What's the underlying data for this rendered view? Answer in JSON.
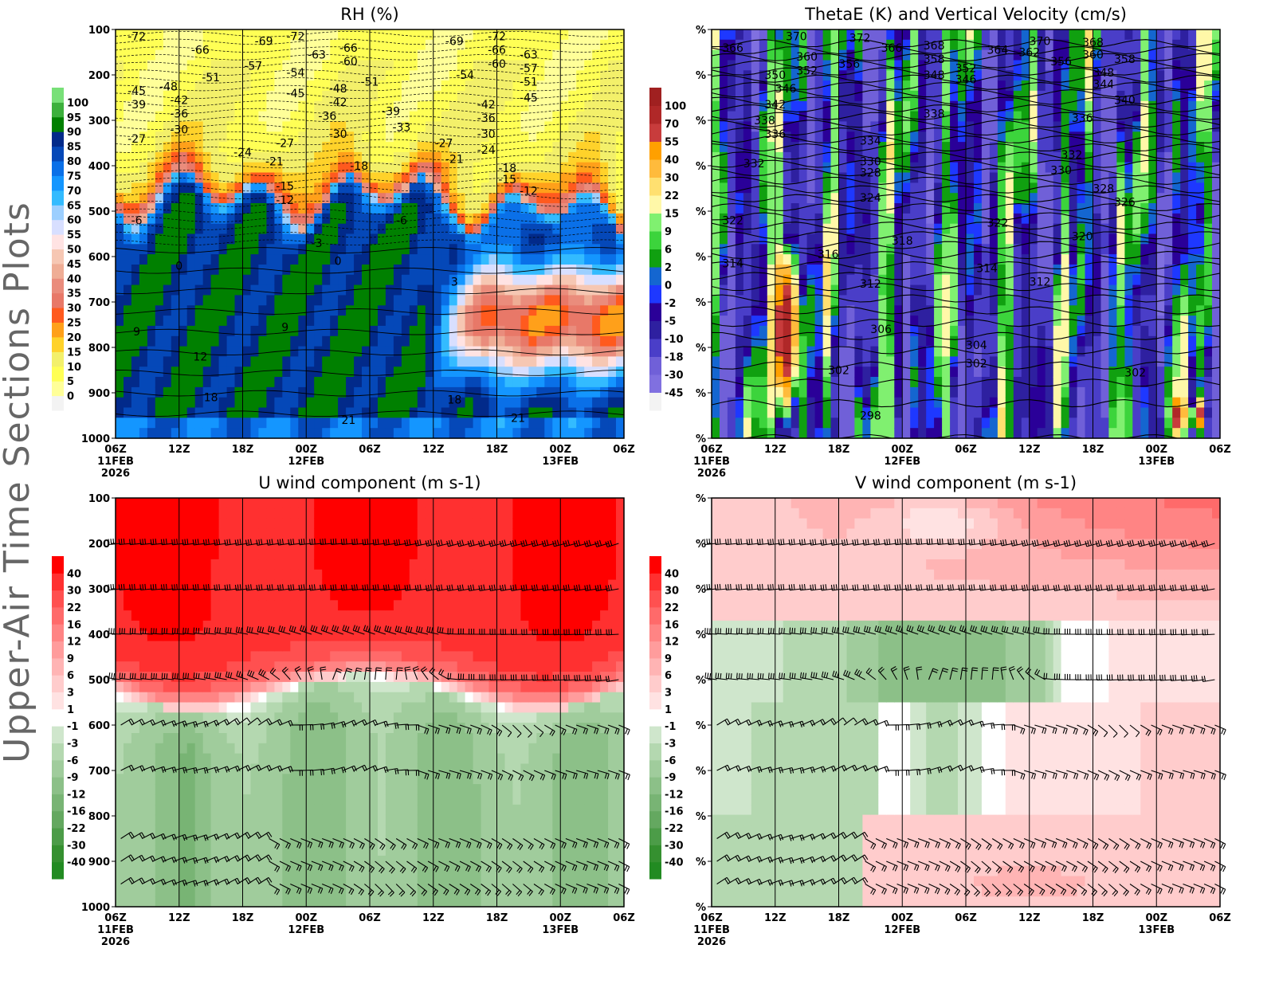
{
  "side_title": "Upper-Air Time Sections Plots",
  "time_axis": {
    "range": [
      "2026-02-11T06:00Z",
      "2026-02-13T06:00Z"
    ],
    "tick_labels": [
      "06Z",
      "12Z",
      "18Z",
      "00Z",
      "06Z",
      "12Z",
      "18Z",
      "00Z",
      "06Z"
    ],
    "date_labels": [
      {
        "tick": 0,
        "lines": [
          "11FEB",
          "2026"
        ]
      },
      {
        "tick": 3,
        "lines": [
          "12FEB"
        ]
      },
      {
        "tick": 7,
        "lines": [
          "13FEB"
        ]
      }
    ]
  },
  "chart_data": [
    {
      "id": "rh",
      "type": "heatmap",
      "title": "RH (%)",
      "ylim": [
        1000,
        100
      ],
      "y_tick_labels": [
        "100",
        "200",
        "300",
        "400",
        "500",
        "600",
        "700",
        "800",
        "900",
        "1000"
      ],
      "colorbar": {
        "levels": [
          "0",
          "5",
          "10",
          "15",
          "20",
          "25",
          "30",
          "35",
          "40",
          "45",
          "50",
          "55",
          "60",
          "65",
          "70",
          "75",
          "80",
          "85",
          "90",
          "95",
          "100"
        ],
        "colors": [
          "#f3f3f3",
          "#ffff99",
          "#ffff55",
          "#f3f06a",
          "#ffd22a",
          "#ffa01a",
          "#ff5a1e",
          "#e87868",
          "#ea8c7c",
          "#efad95",
          "#f6c7b3",
          "#ffe3e3",
          "#d8dfff",
          "#9ccfff",
          "#33bbff",
          "#1496ff",
          "#0a70e8",
          "#0548b8",
          "#022a8a",
          "#008000",
          "#3cb03c",
          "#78e078"
        ]
      },
      "contour_labels": [
        {
          "t": "2026-02-11T08:00Z",
          "p": 115,
          "v": "-72"
        },
        {
          "t": "2026-02-11T14:00Z",
          "p": 145,
          "v": "-66"
        },
        {
          "t": "2026-02-11T20:00Z",
          "p": 125,
          "v": "-69"
        },
        {
          "t": "2026-02-11T23:00Z",
          "p": 115,
          "v": "-72"
        },
        {
          "t": "2026-02-12T01:00Z",
          "p": 155,
          "v": "-63"
        },
        {
          "t": "2026-02-12T04:00Z",
          "p": 140,
          "v": "-66"
        },
        {
          "t": "2026-02-12T04:00Z",
          "p": 170,
          "v": "-60"
        },
        {
          "t": "2026-02-12T14:00Z",
          "p": 125,
          "v": "-69"
        },
        {
          "t": "2026-02-12T18:00Z",
          "p": 115,
          "v": "-72"
        },
        {
          "t": "2026-02-12T18:00Z",
          "p": 145,
          "v": "-66"
        },
        {
          "t": "2026-02-12T18:00Z",
          "p": 175,
          "v": "-60"
        },
        {
          "t": "2026-02-12T21:00Z",
          "p": 155,
          "v": "-63"
        },
        {
          "t": "2026-02-12T21:00Z",
          "p": 185,
          "v": "-57"
        },
        {
          "t": "2026-02-12T21:00Z",
          "p": 215,
          "v": "-51"
        },
        {
          "t": "2026-02-12T21:00Z",
          "p": 250,
          "v": "-45"
        },
        {
          "t": "2026-02-11T19:00Z",
          "p": 180,
          "v": "-57"
        },
        {
          "t": "2026-02-11T23:00Z",
          "p": 195,
          "v": "-54"
        },
        {
          "t": "2026-02-11T23:00Z",
          "p": 240,
          "v": "-45"
        },
        {
          "t": "2026-02-11T15:00Z",
          "p": 205,
          "v": "-51"
        },
        {
          "t": "2026-02-11T11:00Z",
          "p": 225,
          "v": "-48"
        },
        {
          "t": "2026-02-11T08:00Z",
          "p": 235,
          "v": "-45"
        },
        {
          "t": "2026-02-11T08:00Z",
          "p": 265,
          "v": "-39"
        },
        {
          "t": "2026-02-11T12:00Z",
          "p": 255,
          "v": "-42"
        },
        {
          "t": "2026-02-11T12:00Z",
          "p": 285,
          "v": "-36"
        },
        {
          "t": "2026-02-11T12:00Z",
          "p": 320,
          "v": "-30"
        },
        {
          "t": "2026-02-11T08:00Z",
          "p": 340,
          "v": "-27"
        },
        {
          "t": "2026-02-12T03:00Z",
          "p": 230,
          "v": "-48"
        },
        {
          "t": "2026-02-12T03:00Z",
          "p": 260,
          "v": "-42"
        },
        {
          "t": "2026-02-12T02:00Z",
          "p": 290,
          "v": "-36"
        },
        {
          "t": "2026-02-12T03:00Z",
          "p": 330,
          "v": "-30"
        },
        {
          "t": "2026-02-12T06:00Z",
          "p": 215,
          "v": "-51"
        },
        {
          "t": "2026-02-12T15:00Z",
          "p": 200,
          "v": "-54"
        },
        {
          "t": "2026-02-12T08:00Z",
          "p": 280,
          "v": "-39"
        },
        {
          "t": "2026-02-12T09:00Z",
          "p": 315,
          "v": "-33"
        },
        {
          "t": "2026-02-12T17:00Z",
          "p": 265,
          "v": "-42"
        },
        {
          "t": "2026-02-12T17:00Z",
          "p": 295,
          "v": "-36"
        },
        {
          "t": "2026-02-12T17:00Z",
          "p": 330,
          "v": "-30"
        },
        {
          "t": "2026-02-12T17:00Z",
          "p": 365,
          "v": "-24"
        },
        {
          "t": "2026-02-12T13:00Z",
          "p": 350,
          "v": "-27"
        },
        {
          "t": "2026-02-12T14:00Z",
          "p": 385,
          "v": "-21"
        },
        {
          "t": "2026-02-11T18:00Z",
          "p": 370,
          "v": "-24"
        },
        {
          "t": "2026-02-11T22:00Z",
          "p": 350,
          "v": "-27"
        },
        {
          "t": "2026-02-11T21:00Z",
          "p": 390,
          "v": "-21"
        },
        {
          "t": "2026-02-12T05:00Z",
          "p": 400,
          "v": "-18"
        },
        {
          "t": "2026-02-12T19:00Z",
          "p": 405,
          "v": "-18"
        },
        {
          "t": "2026-02-12T19:00Z",
          "p": 430,
          "v": "-15"
        },
        {
          "t": "2026-02-12T21:00Z",
          "p": 455,
          "v": "-12"
        },
        {
          "t": "2026-02-11T22:00Z",
          "p": 445,
          "v": "-15"
        },
        {
          "t": "2026-02-11T22:00Z",
          "p": 475,
          "v": "-12"
        },
        {
          "t": "2026-02-11T08:00Z",
          "p": 520,
          "v": "-6"
        },
        {
          "t": "2026-02-12T09:00Z",
          "p": 520,
          "v": "-6"
        },
        {
          "t": "2026-02-12T01:00Z",
          "p": 570,
          "v": "-3"
        },
        {
          "t": "2026-02-11T12:00Z",
          "p": 620,
          "v": "0"
        },
        {
          "t": "2026-02-12T03:00Z",
          "p": 610,
          "v": "0"
        },
        {
          "t": "2026-02-12T14:00Z",
          "p": 655,
          "v": "3"
        },
        {
          "t": "2026-02-11T08:00Z",
          "p": 765,
          "v": "9"
        },
        {
          "t": "2026-02-11T22:00Z",
          "p": 755,
          "v": "9"
        },
        {
          "t": "2026-02-11T14:00Z",
          "p": 820,
          "v": "12"
        },
        {
          "t": "2026-02-11T15:00Z",
          "p": 910,
          "v": "18"
        },
        {
          "t": "2026-02-12T14:00Z",
          "p": 915,
          "v": "18"
        },
        {
          "t": "2026-02-12T04:00Z",
          "p": 960,
          "v": "21"
        },
        {
          "t": "2026-02-12T20:00Z",
          "p": 955,
          "v": "21"
        }
      ]
    },
    {
      "id": "thetae",
      "type": "heatmap",
      "title": "ThetaE (K) and Vertical Velocity (cm/s)",
      "ylim": [
        1000,
        100
      ],
      "y_tick_labels": [
        "%",
        "%",
        "%",
        "%",
        "%",
        "%",
        "%",
        "%",
        "%",
        "%"
      ],
      "colorbar": {
        "levels": [
          "-45",
          "-30",
          "-18",
          "-10",
          "-5",
          "-2",
          "0",
          "2",
          "6",
          "9",
          "15",
          "22",
          "30",
          "40",
          "55",
          "70",
          "100"
        ],
        "colors": [
          "#f3f3f3",
          "#8070e0",
          "#7060d8",
          "#4a3ec8",
          "#2e20a0",
          "#2a0098",
          "#1e38ff",
          "#1466d0",
          "#10a010",
          "#3cd43c",
          "#80f070",
          "#fff8a8",
          "#ffe070",
          "#ffbb3c",
          "#ffa000",
          "#c83c3c",
          "#b02828",
          "#a02020"
        ]
      },
      "contour_labels": [
        {
          "t": "2026-02-11T08:00Z",
          "p": 140,
          "v": "366"
        },
        {
          "t": "2026-02-11T14:00Z",
          "p": 115,
          "v": "370"
        },
        {
          "t": "2026-02-11T20:00Z",
          "p": 118,
          "v": "372"
        },
        {
          "t": "2026-02-11T23:00Z",
          "p": 140,
          "v": "366"
        },
        {
          "t": "2026-02-12T03:00Z",
          "p": 135,
          "v": "368"
        },
        {
          "t": "2026-02-12T03:00Z",
          "p": 165,
          "v": "358"
        },
        {
          "t": "2026-02-12T03:00Z",
          "p": 200,
          "v": "348"
        },
        {
          "t": "2026-02-12T06:00Z",
          "p": 185,
          "v": "352"
        },
        {
          "t": "2026-02-12T06:00Z",
          "p": 210,
          "v": "346"
        },
        {
          "t": "2026-02-12T09:00Z",
          "p": 145,
          "v": "364"
        },
        {
          "t": "2026-02-12T12:00Z",
          "p": 150,
          "v": "362"
        },
        {
          "t": "2026-02-12T13:00Z",
          "p": 125,
          "v": "370"
        },
        {
          "t": "2026-02-12T15:00Z",
          "p": 170,
          "v": "356"
        },
        {
          "t": "2026-02-12T18:00Z",
          "p": 128,
          "v": "368"
        },
        {
          "t": "2026-02-12T18:00Z",
          "p": 155,
          "v": "360"
        },
        {
          "t": "2026-02-12T21:00Z",
          "p": 165,
          "v": "358"
        },
        {
          "t": "2026-02-12T19:00Z",
          "p": 195,
          "v": "348"
        },
        {
          "t": "2026-02-12T19:00Z",
          "p": 220,
          "v": "344"
        },
        {
          "t": "2026-02-12T21:00Z",
          "p": 255,
          "v": "340"
        },
        {
          "t": "2026-02-12T17:00Z",
          "p": 295,
          "v": "336"
        },
        {
          "t": "2026-02-11T15:00Z",
          "p": 160,
          "v": "360"
        },
        {
          "t": "2026-02-11T15:00Z",
          "p": 190,
          "v": "352"
        },
        {
          "t": "2026-02-11T19:00Z",
          "p": 175,
          "v": "356"
        },
        {
          "t": "2026-02-11T12:00Z",
          "p": 200,
          "v": "350"
        },
        {
          "t": "2026-02-11T13:00Z",
          "p": 230,
          "v": "346"
        },
        {
          "t": "2026-02-11T12:00Z",
          "p": 265,
          "v": "342"
        },
        {
          "t": "2026-02-11T11:00Z",
          "p": 300,
          "v": "338"
        },
        {
          "t": "2026-02-11T12:00Z",
          "p": 330,
          "v": "336"
        },
        {
          "t": "2026-02-12T03:00Z",
          "p": 285,
          "v": "338"
        },
        {
          "t": "2026-02-11T21:00Z",
          "p": 345,
          "v": "334"
        },
        {
          "t": "2026-02-11T21:00Z",
          "p": 390,
          "v": "330"
        },
        {
          "t": "2026-02-11T21:00Z",
          "p": 415,
          "v": "328"
        },
        {
          "t": "2026-02-11T10:00Z",
          "p": 395,
          "v": "332"
        },
        {
          "t": "2026-02-11T21:00Z",
          "p": 470,
          "v": "324"
        },
        {
          "t": "2026-02-12T16:00Z",
          "p": 375,
          "v": "332"
        },
        {
          "t": "2026-02-12T15:00Z",
          "p": 410,
          "v": "330"
        },
        {
          "t": "2026-02-12T19:00Z",
          "p": 450,
          "v": "328"
        },
        {
          "t": "2026-02-12T21:00Z",
          "p": 480,
          "v": "326"
        },
        {
          "t": "2026-02-11T08:00Z",
          "p": 520,
          "v": "322"
        },
        {
          "t": "2026-02-12T09:00Z",
          "p": 525,
          "v": "322"
        },
        {
          "t": "2026-02-12T00:00Z",
          "p": 565,
          "v": "318"
        },
        {
          "t": "2026-02-11T17:00Z",
          "p": 595,
          "v": "316"
        },
        {
          "t": "2026-02-12T17:00Z",
          "p": 555,
          "v": "320"
        },
        {
          "t": "2026-02-11T08:00Z",
          "p": 615,
          "v": "314"
        },
        {
          "t": "2026-02-12T08:00Z",
          "p": 625,
          "v": "314"
        },
        {
          "t": "2026-02-11T21:00Z",
          "p": 660,
          "v": "312"
        },
        {
          "t": "2026-02-12T13:00Z",
          "p": 655,
          "v": "312"
        },
        {
          "t": "2026-02-11T22:00Z",
          "p": 760,
          "v": "306"
        },
        {
          "t": "2026-02-12T07:00Z",
          "p": 795,
          "v": "304"
        },
        {
          "t": "2026-02-12T07:00Z",
          "p": 835,
          "v": "302"
        },
        {
          "t": "2026-02-11T18:00Z",
          "p": 850,
          "v": "302"
        },
        {
          "t": "2026-02-12T22:00Z",
          "p": 855,
          "v": "302"
        },
        {
          "t": "2026-02-11T21:00Z",
          "p": 950,
          "v": "298"
        }
      ]
    },
    {
      "id": "u",
      "type": "heatmap",
      "title": "U wind component (m s-1)",
      "ylim": [
        1000,
        100
      ],
      "y_tick_labels": [
        "100",
        "200",
        "300",
        "400",
        "500",
        "600",
        "700",
        "800",
        "900",
        "1000"
      ],
      "colorbar": {
        "levels": [
          "-40",
          "-30",
          "-22",
          "-16",
          "-12",
          "-9",
          "-6",
          "-3",
          "-1",
          "1",
          "3",
          "6",
          "9",
          "12",
          "16",
          "22",
          "30",
          "40"
        ],
        "colors": [
          "#228b22",
          "#359030",
          "#4c9c48",
          "#64a860",
          "#78b474",
          "#8cc088",
          "#a0cc9c",
          "#b4d8b0",
          "#cfe6cc",
          "#ffffff",
          "#ffe2e2",
          "#ffcccc",
          "#ffb4b4",
          "#ff9c9c",
          "#ff8484",
          "#ff6a6a",
          "#ff5050",
          "#ff3030",
          "#ff0000"
        ]
      }
    },
    {
      "id": "v",
      "type": "heatmap",
      "title": "V wind component (m s-1)",
      "ylim": [
        1000,
        100
      ],
      "y_tick_labels": [
        "%",
        "%",
        "%",
        "%",
        "%",
        "%",
        "%",
        "%",
        "%",
        "%"
      ],
      "colorbar": {
        "levels": [
          "-40",
          "-30",
          "-22",
          "-16",
          "-12",
          "-9",
          "-6",
          "-3",
          "-1",
          "1",
          "3",
          "6",
          "9",
          "12",
          "16",
          "22",
          "30",
          "40"
        ],
        "colors": [
          "#228b22",
          "#359030",
          "#4c9c48",
          "#64a860",
          "#78b474",
          "#8cc088",
          "#a0cc9c",
          "#b4d8b0",
          "#cfe6cc",
          "#ffffff",
          "#ffe2e2",
          "#ffcccc",
          "#ffb4b4",
          "#ff9c9c",
          "#ff8484",
          "#ff6a6a",
          "#ff5050",
          "#ff3030",
          "#ff0000"
        ]
      }
    }
  ]
}
